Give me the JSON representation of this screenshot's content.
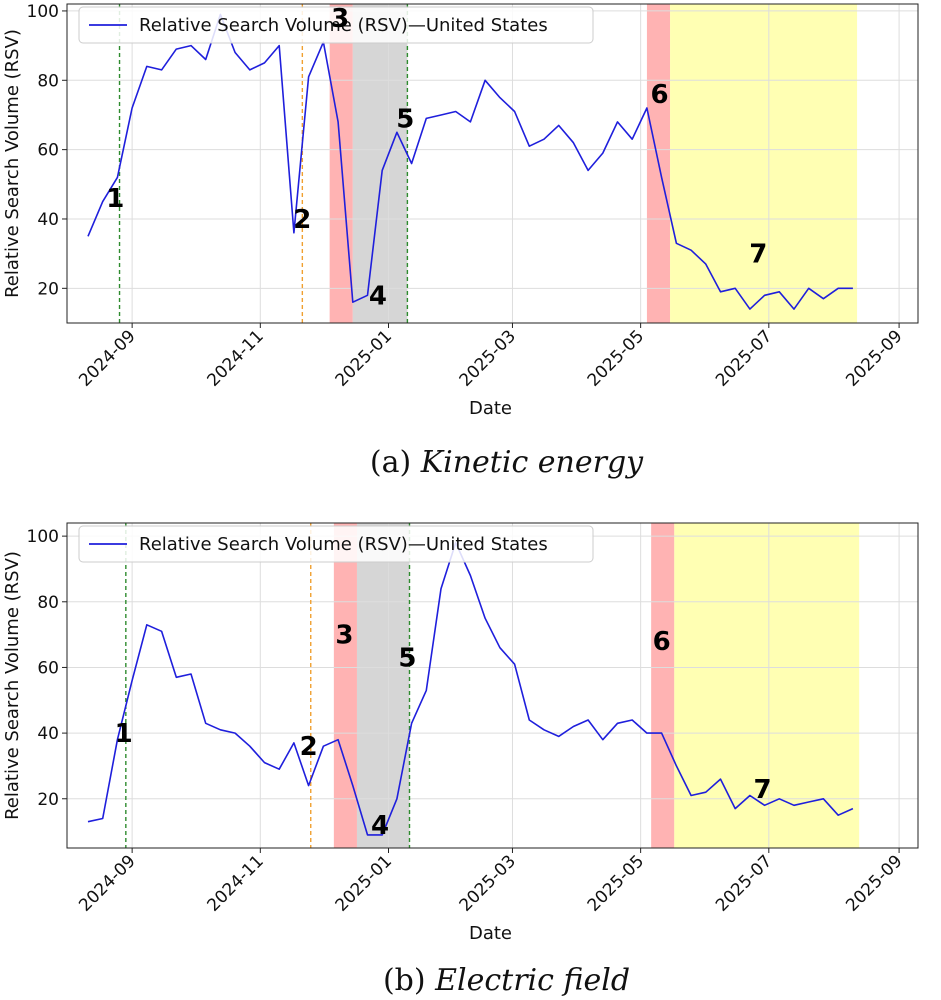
{
  "chart_data": [
    {
      "type": "line",
      "caption_prefix": "(a)",
      "caption_title": "Kinetic energy",
      "xlabel": "Date",
      "ylabel": "Relative Search Volume (RSV)",
      "legend": "Relative Search Volume (RSV)—United States",
      "legend_position": "top-left",
      "grid": true,
      "xlim": [
        "2024-08-01",
        "2025-09-10"
      ],
      "ylim": [
        10,
        102
      ],
      "yticks": [
        20,
        40,
        60,
        80,
        100
      ],
      "xticks": [
        "2024-09",
        "2024-11",
        "2025-01",
        "2025-03",
        "2025-05",
        "2025-07",
        "2025-09"
      ],
      "line_color": "#1f1fdc",
      "series": [
        {
          "x": [
            "2024-08-11",
            "2024-08-18",
            "2024-08-25",
            "2024-09-01",
            "2024-09-08",
            "2024-09-15",
            "2024-09-22",
            "2024-09-29",
            "2024-10-06",
            "2024-10-13",
            "2024-10-20",
            "2024-10-27",
            "2024-11-03",
            "2024-11-10",
            "2024-11-17",
            "2024-11-24",
            "2024-12-01",
            "2024-12-08",
            "2024-12-15",
            "2024-12-22",
            "2024-12-29",
            "2025-01-05",
            "2025-01-12",
            "2025-01-19",
            "2025-01-26",
            "2025-02-02",
            "2025-02-09",
            "2025-02-16",
            "2025-02-23",
            "2025-03-02",
            "2025-03-09",
            "2025-03-16",
            "2025-03-23",
            "2025-03-30",
            "2025-04-06",
            "2025-04-13",
            "2025-04-20",
            "2025-04-27",
            "2025-05-04",
            "2025-05-11",
            "2025-05-18",
            "2025-05-25",
            "2025-06-01",
            "2025-06-08",
            "2025-06-15",
            "2025-06-22",
            "2025-06-29",
            "2025-07-06",
            "2025-07-13",
            "2025-07-20",
            "2025-07-27",
            "2025-08-03",
            "2025-08-10"
          ],
          "values": [
            35,
            45,
            52,
            72,
            84,
            83,
            89,
            90,
            86,
            99,
            88,
            83,
            85,
            90,
            36,
            81,
            91,
            68,
            16,
            18,
            54,
            65,
            56,
            69,
            70,
            71,
            68,
            80,
            75,
            71,
            61,
            63,
            67,
            62,
            54,
            59,
            68,
            63,
            72,
            52,
            33,
            31,
            27,
            19,
            20,
            14,
            18,
            19,
            14,
            20,
            17,
            20,
            20
          ]
        }
      ],
      "vlines": [
        {
          "x": "2024-08-26",
          "color": "#2e8b2e"
        },
        {
          "x": "2024-11-21",
          "color": "#f0a030"
        },
        {
          "x": "2025-01-10",
          "color": "#2e8b2e"
        }
      ],
      "spans": [
        {
          "from": "2024-12-04",
          "to": "2024-12-15",
          "color": "#ff9a9a"
        },
        {
          "from": "2024-12-15",
          "to": "2025-01-10",
          "color": "#c8c8c8"
        },
        {
          "from": "2025-05-04",
          "to": "2025-05-15",
          "color": "#ff9a9a"
        },
        {
          "from": "2025-05-15",
          "to": "2025-08-12",
          "color": "#ffff99"
        }
      ],
      "annotations": [
        {
          "text": "1",
          "x": "2024-08-24",
          "y": 46
        },
        {
          "text": "2",
          "x": "2024-11-21",
          "y": 40
        },
        {
          "text": "3",
          "x": "2024-12-09",
          "y": 98
        },
        {
          "text": "4",
          "x": "2024-12-27",
          "y": 18
        },
        {
          "text": "5",
          "x": "2025-01-09",
          "y": 69
        },
        {
          "text": "6",
          "x": "2025-05-10",
          "y": 76
        },
        {
          "text": "7",
          "x": "2025-06-26",
          "y": 30
        }
      ]
    },
    {
      "type": "line",
      "caption_prefix": "(b)",
      "caption_title": "Electric field",
      "xlabel": "Date",
      "ylabel": "Relative Search Volume (RSV)",
      "legend": "Relative Search Volume (RSV)—United States",
      "legend_position": "top-left",
      "grid": true,
      "xlim": [
        "2024-08-01",
        "2025-09-10"
      ],
      "ylim": [
        5,
        104
      ],
      "yticks": [
        20,
        40,
        60,
        80,
        100
      ],
      "xticks": [
        "2024-09",
        "2024-11",
        "2025-01",
        "2025-03",
        "2025-05",
        "2025-07",
        "2025-09"
      ],
      "line_color": "#1f1fdc",
      "series": [
        {
          "x": [
            "2024-08-11",
            "2024-08-18",
            "2024-08-25",
            "2024-09-01",
            "2024-09-08",
            "2024-09-15",
            "2024-09-22",
            "2024-09-29",
            "2024-10-06",
            "2024-10-13",
            "2024-10-20",
            "2024-10-27",
            "2024-11-03",
            "2024-11-10",
            "2024-11-17",
            "2024-11-24",
            "2024-12-01",
            "2024-12-08",
            "2024-12-15",
            "2024-12-22",
            "2024-12-29",
            "2025-01-05",
            "2025-01-12",
            "2025-01-19",
            "2025-01-26",
            "2025-02-02",
            "2025-02-09",
            "2025-02-16",
            "2025-02-23",
            "2025-03-02",
            "2025-03-09",
            "2025-03-16",
            "2025-03-23",
            "2025-03-30",
            "2025-04-06",
            "2025-04-13",
            "2025-04-20",
            "2025-04-27",
            "2025-05-04",
            "2025-05-11",
            "2025-05-18",
            "2025-05-25",
            "2025-06-01",
            "2025-06-08",
            "2025-06-15",
            "2025-06-22",
            "2025-06-29",
            "2025-07-06",
            "2025-07-13",
            "2025-07-20",
            "2025-07-27",
            "2025-08-03",
            "2025-08-10"
          ],
          "values": [
            13,
            14,
            38,
            56,
            73,
            71,
            57,
            58,
            43,
            41,
            40,
            36,
            31,
            29,
            37,
            24,
            36,
            38,
            24,
            9,
            9,
            20,
            43,
            53,
            84,
            98,
            88,
            75,
            66,
            61,
            44,
            41,
            39,
            42,
            44,
            38,
            43,
            44,
            40,
            40,
            30,
            21,
            22,
            26,
            17,
            21,
            18,
            20,
            18,
            19,
            20,
            15,
            17
          ]
        }
      ],
      "vlines": [
        {
          "x": "2024-08-29",
          "color": "#2e8b2e"
        },
        {
          "x": "2024-11-25",
          "color": "#f0a030"
        },
        {
          "x": "2025-01-11",
          "color": "#2e8b2e"
        }
      ],
      "spans": [
        {
          "from": "2024-12-06",
          "to": "2024-12-17",
          "color": "#ff9a9a"
        },
        {
          "from": "2024-12-17",
          "to": "2025-01-11",
          "color": "#c8c8c8"
        },
        {
          "from": "2025-05-06",
          "to": "2025-05-17",
          "color": "#ff9a9a"
        },
        {
          "from": "2025-05-17",
          "to": "2025-08-13",
          "color": "#ffff99"
        }
      ],
      "annotations": [
        {
          "text": "1",
          "x": "2024-08-28",
          "y": 40
        },
        {
          "text": "2",
          "x": "2024-11-24",
          "y": 36
        },
        {
          "text": "3",
          "x": "2024-12-11",
          "y": 70
        },
        {
          "text": "4",
          "x": "2024-12-28",
          "y": 12
        },
        {
          "text": "5",
          "x": "2025-01-10",
          "y": 63
        },
        {
          "text": "6",
          "x": "2025-05-11",
          "y": 68
        },
        {
          "text": "7",
          "x": "2025-06-28",
          "y": 23
        }
      ]
    }
  ]
}
